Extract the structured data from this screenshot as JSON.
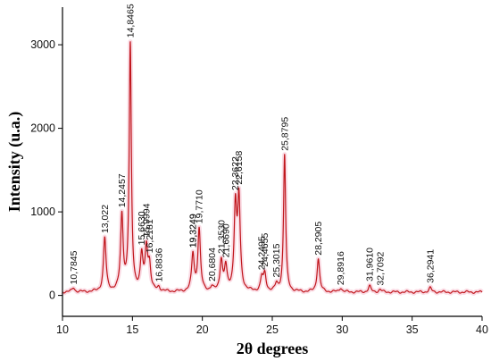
{
  "chart_data": {
    "type": "line",
    "title": "",
    "xlabel": "2θ degrees",
    "ylabel": "Intensity (u.a.)",
    "xlim": [
      10,
      40
    ],
    "ylim": [
      -250,
      3450
    ],
    "x_ticks": [
      {
        "value": 10,
        "label": "10"
      },
      {
        "value": 15,
        "label": "15"
      },
      {
        "value": 20,
        "label": "20"
      },
      {
        "value": 25,
        "label": "25"
      },
      {
        "value": 30,
        "label": "30"
      },
      {
        "value": 35,
        "label": "35"
      },
      {
        "value": 40,
        "label": "40"
      }
    ],
    "y_ticks": [
      {
        "value": 0,
        "label": "0"
      },
      {
        "value": 1000,
        "label": "1000"
      },
      {
        "value": 2000,
        "label": "2000"
      },
      {
        "value": 3000,
        "label": "3000"
      }
    ],
    "grid": false,
    "legend": "none",
    "series": [
      {
        "color": "#c0151b",
        "baseline": 40,
        "peaks": [
          {
            "x": 10.7845,
            "y": 90,
            "label": "10,7845"
          },
          {
            "x": 13.022,
            "y": 680,
            "label": "13,022"
          },
          {
            "x": 14.2457,
            "y": 930,
            "label": "14,2457"
          },
          {
            "x": 14.8465,
            "y": 2980,
            "label": "14,8465"
          },
          {
            "x": 15.663,
            "y": 450,
            "label": "15,6630"
          },
          {
            "x": 15.9994,
            "y": 540,
            "label": "15,9994"
          },
          {
            "x": 16.2181,
            "y": 330,
            "label": "16,2181"
          },
          {
            "x": 16.8836,
            "y": 90,
            "label": "16,8836"
          },
          {
            "x": 19.3249,
            "y": 220,
            "label": "19,3249"
          },
          {
            "x": 19.3249,
            "y": 300,
            "label": "19,3249"
          },
          {
            "x": 19.771,
            "y": 780,
            "label": "19,7710"
          },
          {
            "x": 20.6804,
            "y": 90,
            "label": "20,6804"
          },
          {
            "x": 21.353,
            "y": 410,
            "label": "21,3530"
          },
          {
            "x": 21.669,
            "y": 320,
            "label": "21,6690"
          },
          {
            "x": 22.3622,
            "y": 1030,
            "label": "22,3622"
          },
          {
            "x": 22.6158,
            "y": 1110,
            "label": "22,6158"
          },
          {
            "x": 24.2495,
            "y": 200,
            "label": "24,2495"
          },
          {
            "x": 24.4655,
            "y": 240,
            "label": "24,4655"
          },
          {
            "x": 25.3015,
            "y": 120,
            "label": "25,3015"
          },
          {
            "x": 25.8795,
            "y": 1680,
            "label": "25,8795"
          },
          {
            "x": 28.2905,
            "y": 440,
            "label": "28,2905"
          },
          {
            "x": 29.8916,
            "y": 90,
            "label": "29,8916"
          },
          {
            "x": 31.961,
            "y": 110,
            "label": "31,9610"
          },
          {
            "x": 32.7092,
            "y": 70,
            "label": "32,7092"
          },
          {
            "x": 36.2941,
            "y": 90,
            "label": "36,2941"
          }
        ]
      }
    ]
  }
}
